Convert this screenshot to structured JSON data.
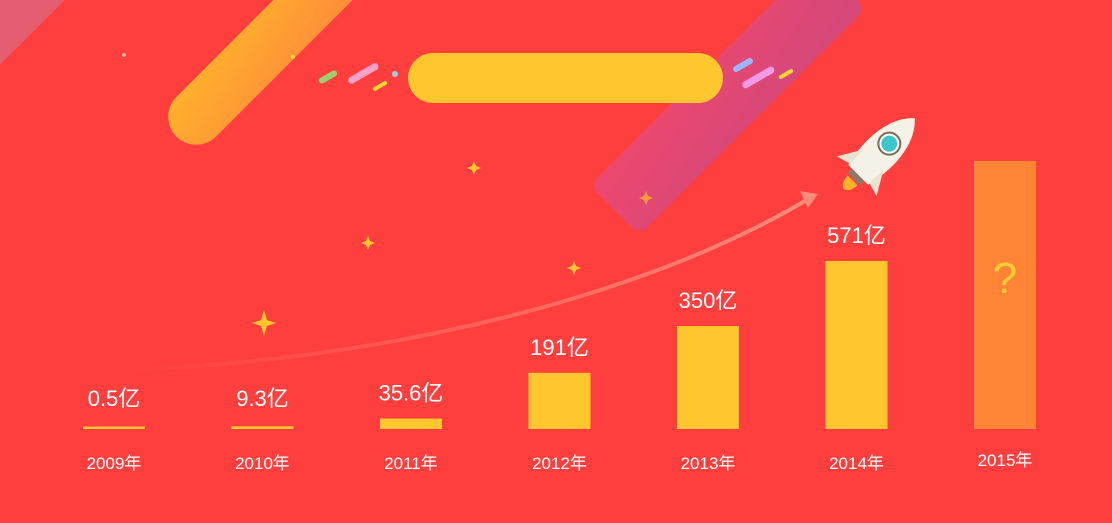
{
  "chart_data": {
    "type": "bar",
    "categories": [
      "2009年",
      "2010年",
      "2011年",
      "2012年",
      "2013年",
      "2014年",
      "2015年"
    ],
    "values": [
      0.5,
      9.3,
      35.6,
      191,
      350,
      571,
      null
    ],
    "data_labels": [
      "0.5亿",
      "9.3亿",
      "35.6亿",
      "191亿",
      "350亿",
      "571亿",
      "?"
    ],
    "title": "",
    "xlabel": "",
    "ylabel": "",
    "ylim": [
      0,
      571
    ],
    "grid": false,
    "legend": "none"
  },
  "colors": {
    "background": "#ff3f3d",
    "bar": "#ffc62d",
    "bar_unknown": "#ff8436",
    "question_mark": "#ffcc33",
    "arrow": "#ff7a6b",
    "baseline": "#ffd36a"
  },
  "decorations": {
    "icons": [
      "rocket-icon",
      "sparkle-icon",
      "growth-arrow-icon"
    ]
  },
  "banner": {
    "title": ""
  }
}
